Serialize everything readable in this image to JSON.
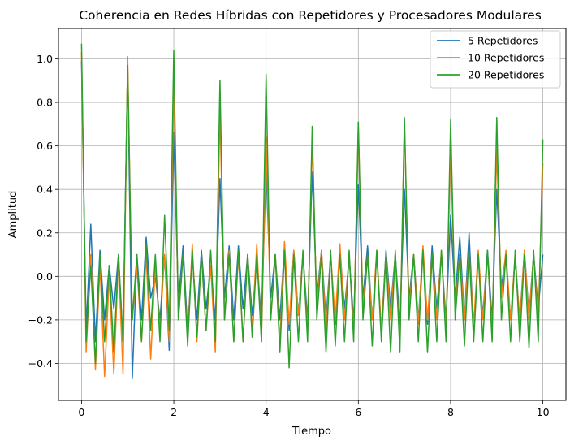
{
  "chart_data": {
    "type": "line",
    "title": "Coherencia en Redes Híbridas con Repetidores y Procesadores Modulares",
    "xlabel": "Tiempo",
    "ylabel": "Amplitud",
    "xlim": [
      -0.5,
      10.5
    ],
    "ylim": [
      -0.57,
      1.14
    ],
    "xticks": [
      0,
      2,
      4,
      6,
      8,
      10
    ],
    "yticks": [
      -0.4,
      -0.2,
      0.0,
      0.2,
      0.4,
      0.6,
      0.8,
      1.0
    ],
    "xtick_labels": [
      "0",
      "2",
      "4",
      "6",
      "8",
      "10"
    ],
    "ytick_labels": [
      "−0.4",
      "−0.2",
      "0.0",
      "0.2",
      "0.4",
      "0.6",
      "0.8",
      "1.0"
    ],
    "grid": true,
    "legend_position": "top-right",
    "series": [
      {
        "name": "5 Repetidores",
        "color": "#1f77b4",
        "x": [
          0,
          0.1,
          0.2,
          0.3,
          0.4,
          0.5,
          0.6,
          0.7,
          0.8,
          0.9,
          1.0,
          1.1,
          1.2,
          1.3,
          1.4,
          1.5,
          1.6,
          1.7,
          1.8,
          1.9,
          2.0,
          2.1,
          2.2,
          2.3,
          2.4,
          2.5,
          2.6,
          2.7,
          2.8,
          2.9,
          3.0,
          3.1,
          3.2,
          3.3,
          3.4,
          3.5,
          3.6,
          3.7,
          3.8,
          3.9,
          4.0,
          4.1,
          4.2,
          4.3,
          4.4,
          4.5,
          4.6,
          4.7,
          4.8,
          4.9,
          5.0,
          5.1,
          5.2,
          5.3,
          5.4,
          5.5,
          5.6,
          5.7,
          5.8,
          5.9,
          6.0,
          6.1,
          6.2,
          6.3,
          6.4,
          6.5,
          6.6,
          6.7,
          6.8,
          6.9,
          7.0,
          7.1,
          7.2,
          7.3,
          7.4,
          7.5,
          7.6,
          7.7,
          7.8,
          7.9,
          8.0,
          8.1,
          8.2,
          8.3,
          8.4,
          8.5,
          8.6,
          8.7,
          8.8,
          8.9,
          9.0,
          9.1,
          9.2,
          9.3,
          9.4,
          9.5,
          9.6,
          9.7,
          9.8,
          9.9,
          10.0
        ],
        "y": [
          0.99,
          -0.25,
          0.24,
          -0.3,
          0.12,
          -0.2,
          0.05,
          -0.15,
          0.1,
          -0.3,
          0.98,
          -0.47,
          0.1,
          -0.2,
          0.18,
          -0.1,
          0.0,
          -0.2,
          0.1,
          -0.34,
          0.66,
          -0.12,
          0.14,
          -0.25,
          0.1,
          -0.2,
          0.12,
          -0.15,
          0.05,
          -0.2,
          0.45,
          -0.1,
          0.14,
          -0.2,
          0.14,
          -0.15,
          0.1,
          -0.18,
          0.08,
          -0.2,
          0.5,
          -0.1,
          0.1,
          -0.2,
          0.14,
          -0.25,
          0.12,
          -0.18,
          0.1,
          -0.2,
          0.48,
          -0.1,
          0.12,
          -0.2,
          0.1,
          -0.22,
          0.12,
          -0.15,
          0.08,
          -0.2,
          0.42,
          -0.1,
          0.14,
          -0.2,
          0.1,
          -0.25,
          0.12,
          -0.15,
          0.1,
          -0.22,
          0.4,
          -0.1,
          0.1,
          -0.2,
          0.12,
          -0.22,
          0.14,
          -0.15,
          0.1,
          -0.2,
          0.28,
          -0.1,
          0.18,
          -0.2,
          0.2,
          -0.25,
          0.1,
          -0.18,
          0.12,
          -0.2,
          0.4,
          -0.05,
          0.1,
          -0.2,
          0.08,
          -0.2,
          0.12,
          -0.18,
          0.1,
          -0.15,
          0.1
        ]
      },
      {
        "name": "10 Repetidores",
        "color": "#ff7f0e",
        "x": [
          0,
          0.1,
          0.2,
          0.3,
          0.4,
          0.5,
          0.6,
          0.7,
          0.8,
          0.9,
          1.0,
          1.1,
          1.2,
          1.3,
          1.4,
          1.5,
          1.6,
          1.7,
          1.8,
          1.9,
          2.0,
          2.1,
          2.2,
          2.3,
          2.4,
          2.5,
          2.6,
          2.7,
          2.8,
          2.9,
          3.0,
          3.1,
          3.2,
          3.3,
          3.4,
          3.5,
          3.6,
          3.7,
          3.8,
          3.9,
          4.0,
          4.1,
          4.2,
          4.3,
          4.4,
          4.5,
          4.6,
          4.7,
          4.8,
          4.9,
          5.0,
          5.1,
          5.2,
          5.3,
          5.4,
          5.5,
          5.6,
          5.7,
          5.8,
          5.9,
          6.0,
          6.1,
          6.2,
          6.3,
          6.4,
          6.5,
          6.6,
          6.7,
          6.8,
          6.9,
          7.0,
          7.1,
          7.2,
          7.3,
          7.4,
          7.5,
          7.6,
          7.7,
          7.8,
          7.9,
          8.0,
          8.1,
          8.2,
          8.3,
          8.4,
          8.5,
          8.6,
          8.7,
          8.8,
          8.9,
          9.0,
          9.1,
          9.2,
          9.3,
          9.4,
          9.5,
          9.6,
          9.7,
          9.8,
          9.9,
          10.0
        ],
        "y": [
          1.03,
          -0.35,
          0.1,
          -0.43,
          0.05,
          -0.46,
          0.0,
          -0.45,
          0.08,
          -0.45,
          1.01,
          -0.2,
          0.05,
          -0.3,
          0.1,
          -0.38,
          0.05,
          -0.25,
          0.1,
          -0.3,
          0.9,
          -0.2,
          0.1,
          -0.3,
          0.15,
          -0.3,
          0.1,
          -0.25,
          0.05,
          -0.35,
          0.76,
          -0.2,
          0.12,
          -0.3,
          0.1,
          -0.3,
          0.1,
          -0.25,
          0.15,
          -0.3,
          0.64,
          -0.2,
          0.1,
          -0.3,
          0.16,
          -0.22,
          0.12,
          -0.18,
          0.1,
          -0.25,
          0.63,
          -0.15,
          0.12,
          -0.25,
          0.1,
          -0.2,
          0.15,
          -0.2,
          0.1,
          -0.25,
          0.68,
          -0.15,
          0.1,
          -0.2,
          0.12,
          -0.25,
          0.1,
          -0.2,
          0.1,
          -0.3,
          0.7,
          -0.15,
          0.1,
          -0.22,
          0.14,
          -0.2,
          0.1,
          -0.2,
          0.12,
          -0.25,
          0.6,
          -0.15,
          0.1,
          -0.2,
          0.12,
          -0.22,
          0.12,
          -0.2,
          0.1,
          -0.25,
          0.58,
          -0.1,
          0.12,
          -0.2,
          0.1,
          -0.22,
          0.12,
          -0.2,
          0.1,
          -0.2,
          0.52
        ]
      },
      {
        "name": "20 Repetidores",
        "color": "#2ca02c",
        "x": [
          0,
          0.1,
          0.2,
          0.3,
          0.4,
          0.5,
          0.6,
          0.7,
          0.8,
          0.9,
          1.0,
          1.1,
          1.2,
          1.3,
          1.4,
          1.5,
          1.6,
          1.7,
          1.8,
          1.9,
          2.0,
          2.1,
          2.2,
          2.3,
          2.4,
          2.5,
          2.6,
          2.7,
          2.8,
          2.9,
          3.0,
          3.1,
          3.2,
          3.3,
          3.4,
          3.5,
          3.6,
          3.7,
          3.8,
          3.9,
          4.0,
          4.1,
          4.2,
          4.3,
          4.4,
          4.5,
          4.6,
          4.7,
          4.8,
          4.9,
          5.0,
          5.1,
          5.2,
          5.3,
          5.4,
          5.5,
          5.6,
          5.7,
          5.8,
          5.9,
          6.0,
          6.1,
          6.2,
          6.3,
          6.4,
          6.5,
          6.6,
          6.7,
          6.8,
          6.9,
          7.0,
          7.1,
          7.2,
          7.3,
          7.4,
          7.5,
          7.6,
          7.7,
          7.8,
          7.9,
          8.0,
          8.1,
          8.2,
          8.3,
          8.4,
          8.5,
          8.6,
          8.7,
          8.8,
          8.9,
          9.0,
          9.1,
          9.2,
          9.3,
          9.4,
          9.5,
          9.6,
          9.7,
          9.8,
          9.9,
          10.0
        ],
        "y": [
          1.07,
          -0.3,
          0.05,
          -0.4,
          0.1,
          -0.3,
          0.05,
          -0.35,
          0.1,
          -0.3,
          0.97,
          -0.2,
          0.1,
          -0.3,
          0.15,
          -0.25,
          0.1,
          -0.3,
          0.28,
          -0.25,
          1.04,
          -0.2,
          0.1,
          -0.32,
          0.12,
          -0.28,
          0.1,
          -0.25,
          0.12,
          -0.3,
          0.9,
          -0.2,
          0.1,
          -0.3,
          0.12,
          -0.3,
          0.1,
          -0.28,
          0.1,
          -0.3,
          0.93,
          -0.2,
          0.1,
          -0.35,
          0.12,
          -0.42,
          0.1,
          -0.3,
          0.12,
          -0.3,
          0.69,
          -0.2,
          0.1,
          -0.35,
          0.12,
          -0.32,
          0.1,
          -0.3,
          0.12,
          -0.3,
          0.71,
          -0.2,
          0.1,
          -0.32,
          0.12,
          -0.3,
          0.1,
          -0.35,
          0.12,
          -0.35,
          0.73,
          -0.2,
          0.1,
          -0.3,
          0.12,
          -0.35,
          0.1,
          -0.3,
          0.12,
          -0.3,
          0.72,
          -0.2,
          0.1,
          -0.32,
          0.12,
          -0.3,
          0.1,
          -0.3,
          0.12,
          -0.3,
          0.73,
          -0.2,
          0.1,
          -0.3,
          0.12,
          -0.3,
          0.1,
          -0.33,
          0.12,
          -0.3,
          0.63
        ]
      }
    ]
  }
}
